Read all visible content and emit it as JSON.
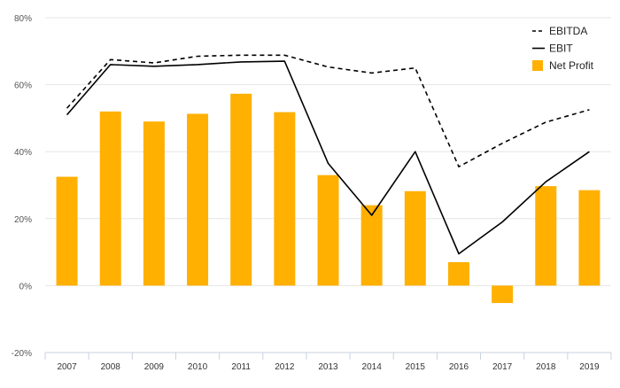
{
  "chart_data": {
    "type": "bar",
    "categories": [
      "2007",
      "2008",
      "2009",
      "2010",
      "2011",
      "2012",
      "2013",
      "2014",
      "2015",
      "2016",
      "2017",
      "2018",
      "2019"
    ],
    "ylim": [
      -20,
      80
    ],
    "yticks": [
      -20,
      0,
      20,
      40,
      60,
      80
    ],
    "ytick_labels": [
      "-20%",
      "0%",
      "20%",
      "40%",
      "60%",
      "80%"
    ],
    "grid": true,
    "legend_position": "top-right",
    "series": [
      {
        "name": "EBITDA",
        "type": "line",
        "style": "dashed",
        "color": "#000000",
        "values": [
          53,
          67.5,
          66.5,
          68.5,
          68.8,
          68.8,
          65.3,
          63.5,
          65,
          35.5,
          42.5,
          48.8,
          52.5
        ]
      },
      {
        "name": "EBIT",
        "type": "line",
        "style": "solid",
        "color": "#000000",
        "values": [
          51,
          66,
          65.5,
          66,
          66.8,
          67,
          36.5,
          21,
          40,
          9.5,
          19,
          31,
          40
        ]
      },
      {
        "name": "Net Profit",
        "type": "bar",
        "color": "#FFB000",
        "values": [
          32.5,
          52,
          49,
          51.3,
          57.3,
          51.8,
          33,
          24,
          28.2,
          7,
          -5.2,
          29.7,
          28.5
        ]
      }
    ]
  }
}
